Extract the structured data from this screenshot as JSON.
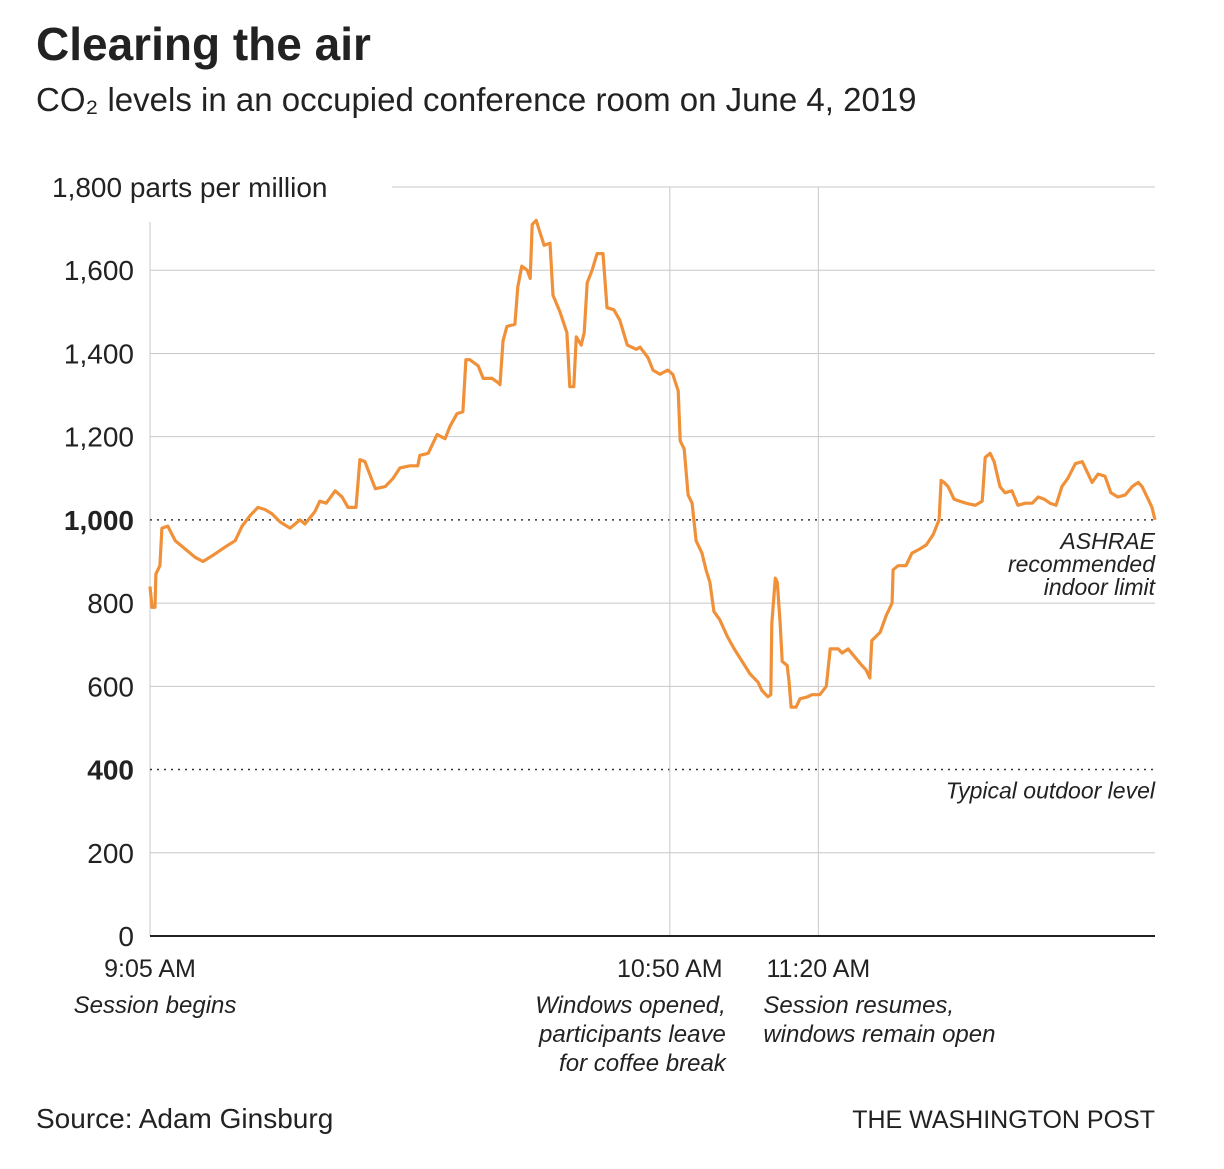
{
  "chart_data": {
    "type": "line",
    "title": "Clearing the air",
    "subtitle": "CO₂ levels in an occupied conference room on June 4, 2019",
    "source": "Source: Adam Ginsburg",
    "credit": "THE WASHINGTON POST",
    "color": "#f0913a",
    "xlim": [
      545,
      748
    ],
    "xticks": [
      {
        "value": 545,
        "label": "9:05 AM"
      },
      {
        "value": 650,
        "label": "10:50 AM"
      },
      {
        "value": 680,
        "label": "11:20 AM"
      }
    ],
    "ylim": [
      0,
      1800
    ],
    "yticks": [
      0,
      200,
      400,
      {
        "value": 600,
        "label": "600"
      },
      {
        "value": 800,
        "label": "800"
      },
      {
        "value": 1000,
        "label": "1,000"
      },
      {
        "value": 1200,
        "label": "1,200"
      },
      {
        "value": 1400,
        "label": "1,400"
      },
      {
        "value": 1600,
        "label": "1,600"
      },
      {
        "value": 1800,
        "label": "1,800 parts per million"
      }
    ],
    "grid": true,
    "reference_lines": [
      {
        "value": 1000,
        "lines": [
          "ASHRAE",
          "recommended",
          "indoor limit"
        ]
      },
      {
        "value": 400,
        "lines": [
          "Typical outdoor level"
        ]
      }
    ],
    "x_notes": [
      {
        "x": 545,
        "align": "middle",
        "lines": [
          "Session begins"
        ]
      },
      {
        "x": 650,
        "align": "end",
        "lines": [
          "Windows opened,",
          "participants leave",
          "for coffee break"
        ]
      },
      {
        "x": 680,
        "align": "start",
        "lines": [
          "Session resumes,",
          "windows remain open"
        ]
      }
    ],
    "x": [
      545,
      545.4,
      546,
      546.2,
      547,
      547.4,
      548.6,
      550.1,
      552.1,
      554.1,
      555.7,
      557.7,
      560.2,
      562.2,
      563.6,
      565.2,
      566.8,
      568.2,
      569.6,
      571.3,
      573.3,
      575.3,
      576.3,
      578.3,
      579.3,
      580.6,
      582.4,
      583.8,
      585,
      586.6,
      587.4,
      588.4,
      590.5,
      592.5,
      594.1,
      595.5,
      597.5,
      599.1,
      599.5,
      601.2,
      603,
      604.6,
      605.6,
      607,
      608.2,
      608.8,
      609.6,
      611.3,
      612.3,
      614.1,
      615.3,
      615.7,
      616.3,
      617.1,
      618.7,
      619.3,
      620.1,
      621.2,
      621.8,
      622.2,
      623,
      623.8,
      624.6,
      625.8,
      626.4,
      627.8,
      629.2,
      629.8,
      630.6,
      631.1,
      632.1,
      632.7,
      633.3,
      634.3,
      635.3,
      636.5,
      637.3,
      638.7,
      639.9,
      641.4,
      643.2,
      644,
      645.6,
      646.6,
      648,
      649.6,
      650.6,
      651.7,
      652.1,
      652.9,
      653.7,
      654.5,
      655.3,
      656.5,
      657.3,
      658.1,
      658.9,
      660.1,
      661.6,
      663,
      664.6,
      666.2,
      667.8,
      668.6,
      669.8,
      670.4,
      670.6,
      671.3,
      671.7,
      672.3,
      672.7,
      673.7,
      674.1,
      674.5,
      675.5,
      676.3,
      677.9,
      678.7,
      680.3,
      681.6,
      682.4,
      684,
      684.8,
      686,
      687.4,
      688.8,
      689.6,
      690.4,
      690.8,
      692.5,
      693.7,
      694.9,
      695.1,
      696.1,
      697.7,
      698.9,
      700.5,
      701.8,
      703.2,
      704.4,
      704.8,
      705.4,
      706.2,
      707.4,
      708.6,
      709.8,
      711.7,
      713.1,
      713.7,
      714.7,
      715.5,
      716.7,
      717.7,
      719.1,
      720.3,
      721.8,
      723.2,
      724.4,
      725.6,
      726.8,
      728,
      729.2,
      730.4,
      731.9,
      733.3,
      734.5,
      735.3,
      736.5,
      737.9,
      739.1,
      740.5,
      742,
      743.4,
      744.6,
      745.4,
      746.6,
      747.4,
      748
    ],
    "values": [
      840,
      790,
      790,
      870,
      890,
      980,
      985,
      950,
      930,
      910,
      900,
      915,
      935,
      950,
      985,
      1010,
      1030,
      1025,
      1015,
      995,
      980,
      1000,
      990,
      1020,
      1045,
      1040,
      1070,
      1055,
      1030,
      1030,
      1145,
      1140,
      1075,
      1080,
      1100,
      1125,
      1130,
      1130,
      1155,
      1160,
      1205,
      1195,
      1225,
      1255,
      1260,
      1385,
      1385,
      1370,
      1340,
      1340,
      1330,
      1325,
      1430,
      1465,
      1470,
      1560,
      1610,
      1600,
      1580,
      1710,
      1720,
      1690,
      1660,
      1665,
      1540,
      1500,
      1450,
      1320,
      1320,
      1440,
      1420,
      1450,
      1570,
      1600,
      1640,
      1640,
      1510,
      1505,
      1480,
      1420,
      1410,
      1415,
      1390,
      1360,
      1350,
      1360,
      1350,
      1310,
      1190,
      1170,
      1060,
      1040,
      950,
      920,
      880,
      850,
      780,
      760,
      720,
      690,
      660,
      630,
      610,
      590,
      575,
      580,
      750,
      860,
      850,
      750,
      660,
      650,
      610,
      550,
      550,
      570,
      575,
      580,
      580,
      600,
      690,
      690,
      680,
      690,
      670,
      650,
      640,
      620,
      710,
      730,
      770,
      800,
      880,
      890,
      890,
      920,
      930,
      940,
      965,
      1000,
      1095,
      1090,
      1080,
      1050,
      1045,
      1040,
      1035,
      1045,
      1150,
      1160,
      1140,
      1080,
      1065,
      1070,
      1035,
      1040,
      1040,
      1055,
      1050,
      1040,
      1035,
      1080,
      1100,
      1135,
      1140,
      1110,
      1090,
      1110,
      1105,
      1065,
      1055,
      1060,
      1080,
      1090,
      1080,
      1050,
      1030,
      1000
    ]
  }
}
